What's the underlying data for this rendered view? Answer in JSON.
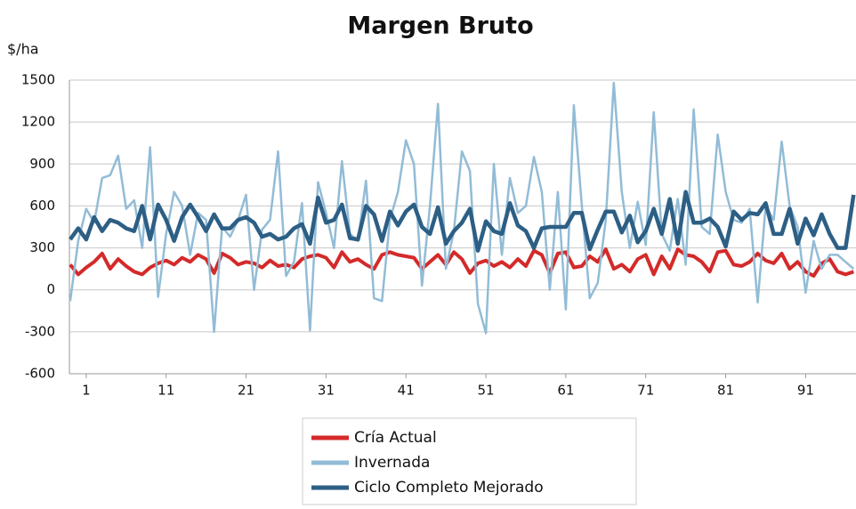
{
  "chart_data": {
    "type": "line",
    "title": "Margen Bruto",
    "y_label": "$/ha",
    "x": [
      -1,
      0,
      1,
      2,
      3,
      4,
      5,
      6,
      7,
      8,
      9,
      10,
      11,
      12,
      13,
      14,
      15,
      16,
      17,
      18,
      19,
      20,
      21,
      22,
      23,
      24,
      25,
      26,
      27,
      28,
      29,
      30,
      31,
      32,
      33,
      34,
      35,
      36,
      37,
      38,
      39,
      40,
      41,
      42,
      43,
      44,
      45,
      46,
      47,
      48,
      49,
      50,
      51,
      52,
      53,
      54,
      55,
      56,
      57,
      58,
      59,
      60,
      61,
      62,
      63,
      64,
      65,
      66,
      67,
      68,
      69,
      70,
      71,
      72,
      73,
      74,
      75,
      76,
      77,
      78,
      79,
      80,
      81,
      82,
      83,
      84,
      85,
      86,
      87,
      88,
      89,
      90,
      91,
      92,
      93,
      94,
      95,
      96,
      97
    ],
    "xlim": [
      -1.1,
      97.3
    ],
    "xticks": [
      1,
      11,
      21,
      31,
      41,
      51,
      61,
      71,
      81,
      91
    ],
    "ylim": [
      -600,
      1500
    ],
    "yticks": [
      -600,
      -300,
      0,
      300,
      600,
      900,
      1200,
      1500
    ],
    "grid": true,
    "series": [
      {
        "name": "Cría Actual",
        "color": "#d42a2a",
        "values": [
          180,
          110,
          160,
          200,
          260,
          150,
          220,
          170,
          130,
          110,
          160,
          190,
          210,
          180,
          230,
          200,
          250,
          220,
          120,
          260,
          230,
          180,
          200,
          190,
          160,
          210,
          170,
          180,
          160,
          220,
          240,
          250,
          230,
          160,
          270,
          200,
          220,
          180,
          150,
          250,
          270,
          250,
          240,
          230,
          150,
          200,
          250,
          180,
          270,
          220,
          120,
          190,
          210,
          170,
          200,
          160,
          220,
          170,
          280,
          250,
          120,
          260,
          270,
          160,
          170,
          240,
          200,
          290,
          150,
          180,
          130,
          220,
          250,
          110,
          240,
          150,
          290,
          250,
          240,
          200,
          130,
          270,
          280,
          180,
          170,
          200,
          260,
          210,
          190,
          260,
          150,
          200,
          130,
          100,
          190,
          220,
          130,
          110,
          130
        ]
      },
      {
        "name": "Invernada",
        "color": "#92bcd6",
        "values": [
          -80,
          350,
          580,
          480,
          800,
          820,
          960,
          580,
          640,
          300,
          1020,
          -50,
          400,
          700,
          600,
          250,
          550,
          500,
          -300,
          450,
          380,
          500,
          680,
          0,
          430,
          500,
          990,
          100,
          200,
          620,
          -290,
          770,
          550,
          300,
          920,
          400,
          350,
          780,
          -60,
          -80,
          500,
          700,
          1070,
          900,
          30,
          600,
          1330,
          150,
          420,
          990,
          850,
          -100,
          -310,
          900,
          250,
          800,
          550,
          600,
          950,
          700,
          0,
          700,
          -140,
          1320,
          600,
          -60,
          50,
          500,
          1480,
          700,
          300,
          630,
          320,
          1270,
          400,
          280,
          650,
          180,
          1290,
          450,
          400,
          1110,
          700,
          500,
          480,
          580,
          -90,
          600,
          500,
          1060,
          600,
          450,
          -20,
          350,
          150,
          250,
          250,
          200,
          150
        ]
      },
      {
        "name": "Ciclo Completo Mejorado",
        "color": "#2d5f85",
        "values": [
          360,
          440,
          360,
          520,
          420,
          500,
          480,
          440,
          420,
          600,
          360,
          610,
          500,
          350,
          520,
          610,
          520,
          420,
          540,
          440,
          440,
          500,
          520,
          480,
          380,
          400,
          360,
          380,
          440,
          470,
          330,
          660,
          480,
          500,
          610,
          370,
          360,
          600,
          540,
          350,
          560,
          460,
          560,
          610,
          450,
          400,
          590,
          330,
          420,
          480,
          580,
          280,
          490,
          420,
          400,
          620,
          460,
          420,
          300,
          440,
          450,
          450,
          450,
          550,
          550,
          290,
          430,
          560,
          560,
          410,
          530,
          340,
          420,
          580,
          400,
          650,
          330,
          700,
          480,
          480,
          510,
          450,
          310,
          560,
          500,
          550,
          540,
          620,
          400,
          400,
          580,
          330,
          510,
          390,
          540,
          400,
          300,
          300,
          680
        ]
      }
    ]
  }
}
